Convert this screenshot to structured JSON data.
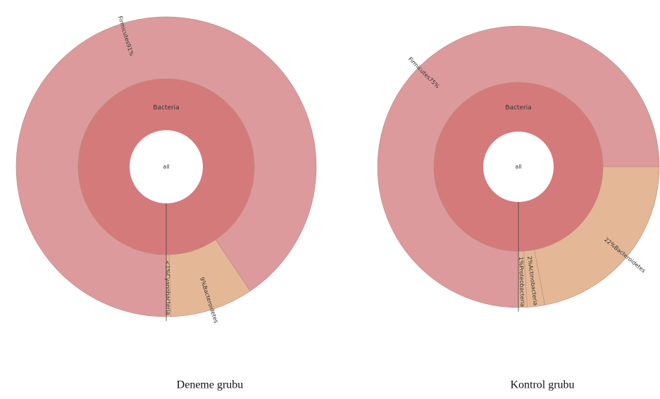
{
  "chart_data": [
    {
      "type": "sunburst",
      "title": "Deneme grubu",
      "center": "all",
      "inner": "Bacteria",
      "categories": [
        "Firmicutes",
        "Bacteroidetes",
        "Cyanobacteria"
      ],
      "values": [
        91,
        9,
        0.5
      ],
      "value_labels": [
        "91%",
        "9%",
        "<1%"
      ],
      "colors": [
        "#dc9a9c",
        "#e4b896",
        "#e4b896"
      ],
      "inner_color": "#d57a7b"
    },
    {
      "type": "sunburst",
      "title": "Kontrol grubu",
      "center": "all",
      "inner": "Bacteria",
      "categories": [
        "Firmicutes",
        "Bacteroidetes",
        "Actinobacteria",
        "Proteobacteria"
      ],
      "values": [
        75,
        22,
        2,
        1
      ],
      "value_labels": [
        "75%",
        "22%",
        "2%",
        "1%"
      ],
      "colors": [
        "#dc9a9c",
        "#e4b896",
        "#e4b896",
        "#e4b896"
      ],
      "inner_color": "#d57a7b"
    }
  ]
}
